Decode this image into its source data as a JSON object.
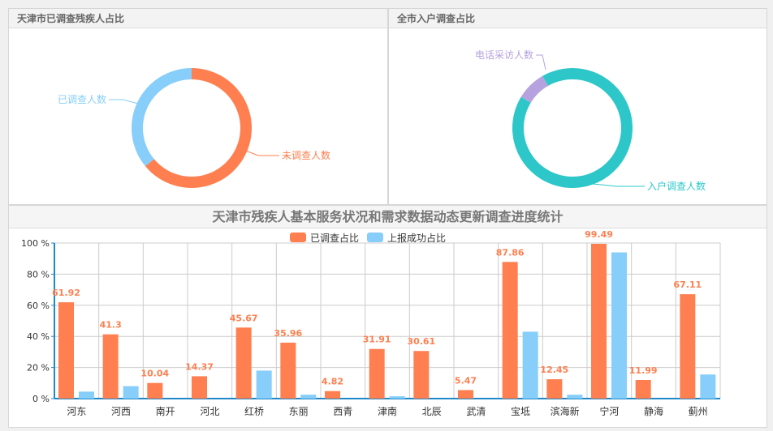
{
  "panels": {
    "left_title": "天津市已调查残疾人占比",
    "right_title": "全市入户调查占比",
    "bottom_title": "天津市残疾人基本服务状况和需求数据动态更新调查进度统计"
  },
  "chart_data": [
    {
      "type": "pie",
      "title": "天津市已调查残疾人占比",
      "slices": [
        {
          "label": "未调查人数",
          "value": 0.64,
          "color": "#ff7f50"
        },
        {
          "label": "已调查人数",
          "value": 0.36,
          "color": "#87cefa"
        }
      ]
    },
    {
      "type": "pie",
      "title": "全市入户调查占比",
      "slices": [
        {
          "label": "入户调查人数",
          "value": 0.92,
          "color": "#2ec7c9"
        },
        {
          "label": "电话采访人数",
          "value": 0.08,
          "color": "#b6a2de"
        }
      ]
    },
    {
      "type": "bar",
      "title": "天津市残疾人基本服务状况和需求数据动态更新调查进度统计",
      "categories": [
        "河东",
        "河西",
        "南开",
        "河北",
        "红桥",
        "东丽",
        "西青",
        "津南",
        "北辰",
        "武清",
        "宝坻",
        "滨海新",
        "宁河",
        "静海",
        "蓟州"
      ],
      "series": [
        {
          "name": "已调查占比",
          "color": "#ff7f50",
          "values": [
            61.92,
            41.3,
            10.04,
            14.37,
            45.67,
            35.96,
            4.82,
            31.91,
            30.61,
            5.47,
            87.86,
            12.45,
            99.49,
            11.99,
            67.11
          ],
          "labels": [
            "61.92",
            "41.3",
            "10.04",
            "14.37",
            "45.67",
            "35.96",
            "4.82",
            "31.91",
            "30.61",
            "5.47",
            "87.86",
            "12.45",
            "99.49",
            "11.99",
            "67.11"
          ]
        },
        {
          "name": "上报成功占比",
          "color": "#87cefa",
          "values": [
            4.5,
            8,
            0,
            0,
            18,
            2.5,
            0,
            1.5,
            0,
            0,
            43,
            2.5,
            94,
            0,
            15.5
          ]
        }
      ],
      "yticks": [
        "0 %",
        "20 %",
        "40 %",
        "60 %",
        "80 %",
        "100 %"
      ],
      "ylim": [
        0,
        100
      ],
      "legend": "top-center",
      "grid": true
    }
  ]
}
